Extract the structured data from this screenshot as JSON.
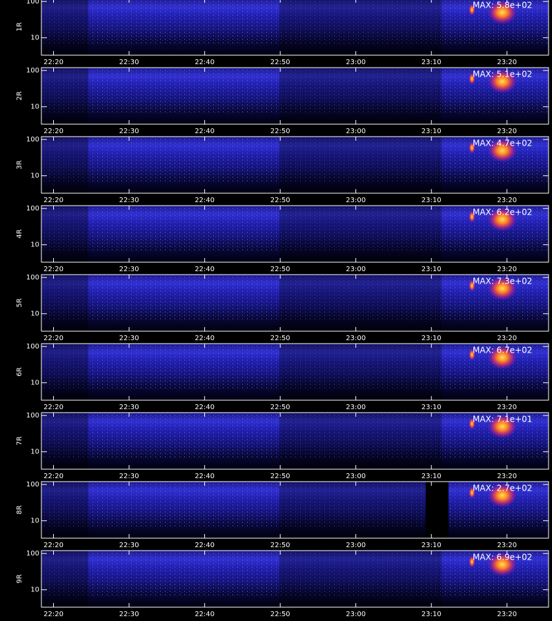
{
  "chart_data": [
    {
      "type": "spectrogram",
      "ylabel": "1R",
      "annotation": "MAX: 5.8e+02",
      "xlim": [
        1338.4,
        1405.5
      ],
      "xticks": [
        {
          "value": 1340,
          "label": "22:20"
        },
        {
          "value": 1350,
          "label": "22:30"
        },
        {
          "value": 1360,
          "label": "22:40"
        },
        {
          "value": 1370,
          "label": "22:50"
        },
        {
          "value": 1380,
          "label": "23:00"
        },
        {
          "value": 1390,
          "label": "23:10"
        },
        {
          "value": 1400,
          "label": "23:20"
        }
      ],
      "ylim": [
        3.3,
        120
      ],
      "yticks": [
        10,
        100
      ],
      "log_y": true
    },
    {
      "type": "spectrogram",
      "ylabel": "2R",
      "annotation": "MAX: 5.1e+02",
      "xlim": [
        1338.4,
        1405.5
      ],
      "xticks": [
        {
          "value": 1340,
          "label": "22:20"
        },
        {
          "value": 1350,
          "label": "22:30"
        },
        {
          "value": 1360,
          "label": "22:40"
        },
        {
          "value": 1370,
          "label": "22:50"
        },
        {
          "value": 1380,
          "label": "23:00"
        },
        {
          "value": 1390,
          "label": "23:10"
        },
        {
          "value": 1400,
          "label": "23:20"
        }
      ],
      "ylim": [
        3.3,
        120
      ],
      "yticks": [
        10,
        100
      ],
      "log_y": true
    },
    {
      "type": "spectrogram",
      "ylabel": "3R",
      "annotation": "MAX: 4.7e+02",
      "xlim": [
        1338.4,
        1405.5
      ],
      "xticks": [
        {
          "value": 1340,
          "label": "22:20"
        },
        {
          "value": 1350,
          "label": "22:30"
        },
        {
          "value": 1360,
          "label": "22:40"
        },
        {
          "value": 1370,
          "label": "22:50"
        },
        {
          "value": 1380,
          "label": "23:00"
        },
        {
          "value": 1390,
          "label": "23:10"
        },
        {
          "value": 1400,
          "label": "23:20"
        }
      ],
      "ylim": [
        3.3,
        120
      ],
      "yticks": [
        10,
        100
      ],
      "log_y": true
    },
    {
      "type": "spectrogram",
      "ylabel": "4R",
      "annotation": "MAX: 6.2e+02",
      "xlim": [
        1338.4,
        1405.5
      ],
      "xticks": [
        {
          "value": 1340,
          "label": "22:20"
        },
        {
          "value": 1350,
          "label": "22:30"
        },
        {
          "value": 1360,
          "label": "22:40"
        },
        {
          "value": 1370,
          "label": "22:50"
        },
        {
          "value": 1380,
          "label": "23:00"
        },
        {
          "value": 1390,
          "label": "23:10"
        },
        {
          "value": 1400,
          "label": "23:20"
        }
      ],
      "ylim": [
        3.3,
        120
      ],
      "yticks": [
        10,
        100
      ],
      "log_y": true
    },
    {
      "type": "spectrogram",
      "ylabel": "5R",
      "annotation": "MAX: 7.3e+02",
      "xlim": [
        1338.4,
        1405.5
      ],
      "xticks": [
        {
          "value": 1340,
          "label": "22:20"
        },
        {
          "value": 1350,
          "label": "22:30"
        },
        {
          "value": 1360,
          "label": "22:40"
        },
        {
          "value": 1370,
          "label": "22:50"
        },
        {
          "value": 1380,
          "label": "23:00"
        },
        {
          "value": 1390,
          "label": "23:10"
        },
        {
          "value": 1400,
          "label": "23:20"
        }
      ],
      "ylim": [
        3.3,
        120
      ],
      "yticks": [
        10,
        100
      ],
      "log_y": true
    },
    {
      "type": "spectrogram",
      "ylabel": "6R",
      "annotation": "MAX: 6.7e+02",
      "xlim": [
        1338.4,
        1405.5
      ],
      "xticks": [
        {
          "value": 1340,
          "label": "22:20"
        },
        {
          "value": 1350,
          "label": "22:30"
        },
        {
          "value": 1360,
          "label": "22:40"
        },
        {
          "value": 1370,
          "label": "22:50"
        },
        {
          "value": 1380,
          "label": "23:00"
        },
        {
          "value": 1390,
          "label": "23:10"
        },
        {
          "value": 1400,
          "label": "23:20"
        }
      ],
      "ylim": [
        3.3,
        120
      ],
      "yticks": [
        10,
        100
      ],
      "log_y": true
    },
    {
      "type": "spectrogram",
      "ylabel": "7R",
      "annotation": "MAX: 7.1e+01",
      "xlim": [
        1338.4,
        1405.5
      ],
      "xticks": [
        {
          "value": 1340,
          "label": "22:20"
        },
        {
          "value": 1350,
          "label": "22:30"
        },
        {
          "value": 1360,
          "label": "22:40"
        },
        {
          "value": 1370,
          "label": "22:50"
        },
        {
          "value": 1380,
          "label": "23:00"
        },
        {
          "value": 1390,
          "label": "23:10"
        },
        {
          "value": 1400,
          "label": "23:20"
        }
      ],
      "ylim": [
        3.3,
        120
      ],
      "yticks": [
        10,
        100
      ],
      "log_y": true
    },
    {
      "type": "spectrogram",
      "ylabel": "8R",
      "annotation": "MAX: 2.7e+02",
      "xlim": [
        1338.4,
        1405.5
      ],
      "xticks": [
        {
          "value": 1340,
          "label": "22:20"
        },
        {
          "value": 1350,
          "label": "22:30"
        },
        {
          "value": 1360,
          "label": "22:40"
        },
        {
          "value": 1370,
          "label": "22:50"
        },
        {
          "value": 1380,
          "label": "23:00"
        },
        {
          "value": 1390,
          "label": "23:10"
        },
        {
          "value": 1400,
          "label": "23:20"
        }
      ],
      "ylim": [
        3.3,
        120
      ],
      "yticks": [
        10,
        100
      ],
      "log_y": true
    },
    {
      "type": "spectrogram",
      "ylabel": "9R",
      "annotation": "MAX: 6.9e+02",
      "xlim": [
        1338.4,
        1405.5
      ],
      "xticks": [
        {
          "value": 1340,
          "label": "22:20"
        },
        {
          "value": 1350,
          "label": "22:30"
        },
        {
          "value": 1360,
          "label": "22:40"
        },
        {
          "value": 1370,
          "label": "22:50"
        },
        {
          "value": 1380,
          "label": "23:00"
        },
        {
          "value": 1390,
          "label": "23:10"
        },
        {
          "value": 1400,
          "label": "23:20"
        }
      ],
      "ylim": [
        3.3,
        120
      ],
      "yticks": [
        10,
        100
      ],
      "log_y": true
    }
  ]
}
